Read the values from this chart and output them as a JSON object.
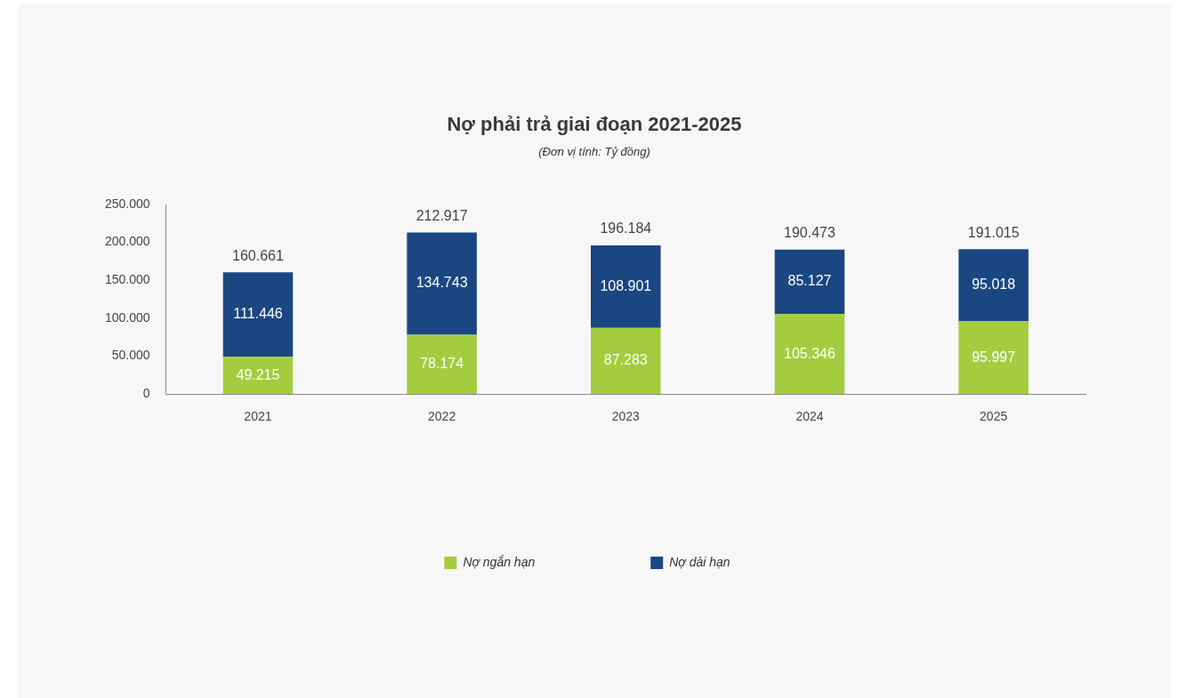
{
  "chart_data": {
    "type": "bar",
    "title": "Nợ phải trả giai đoạn 2021-2025",
    "subtitle": "(Đơn vị tính: Tỷ đồng)",
    "stacked": true,
    "categories": [
      "2021",
      "2022",
      "2023",
      "2024",
      "2025"
    ],
    "series": [
      {
        "name": "Nợ ngắn hạn",
        "color": "#a3cd3f",
        "values": [
          49215,
          78174,
          87283,
          105346,
          95997
        ],
        "value_labels": [
          "49.215",
          "78.174",
          "87.283",
          "105.346",
          "95.997"
        ]
      },
      {
        "name": "Nợ dài hạn",
        "color": "#1a4781",
        "values": [
          111446,
          134743,
          108901,
          85127,
          95018
        ],
        "value_labels": [
          "111.446",
          "134.743",
          "108.901",
          "85.127",
          "95.018"
        ]
      }
    ],
    "totals": [
      "160.661",
      "212.917",
      "196.184",
      "190.473",
      "191.015"
    ],
    "ylim": [
      0,
      250000
    ],
    "yticks": [
      {
        "value": 0,
        "label": "0"
      },
      {
        "value": 50000,
        "label": "50.000"
      },
      {
        "value": 100000,
        "label": "100.000"
      },
      {
        "value": 150000,
        "label": "150.000"
      },
      {
        "value": 200000,
        "label": "200.000"
      },
      {
        "value": 250000,
        "label": "250.000"
      }
    ],
    "grid": false,
    "legend": "bottom"
  }
}
